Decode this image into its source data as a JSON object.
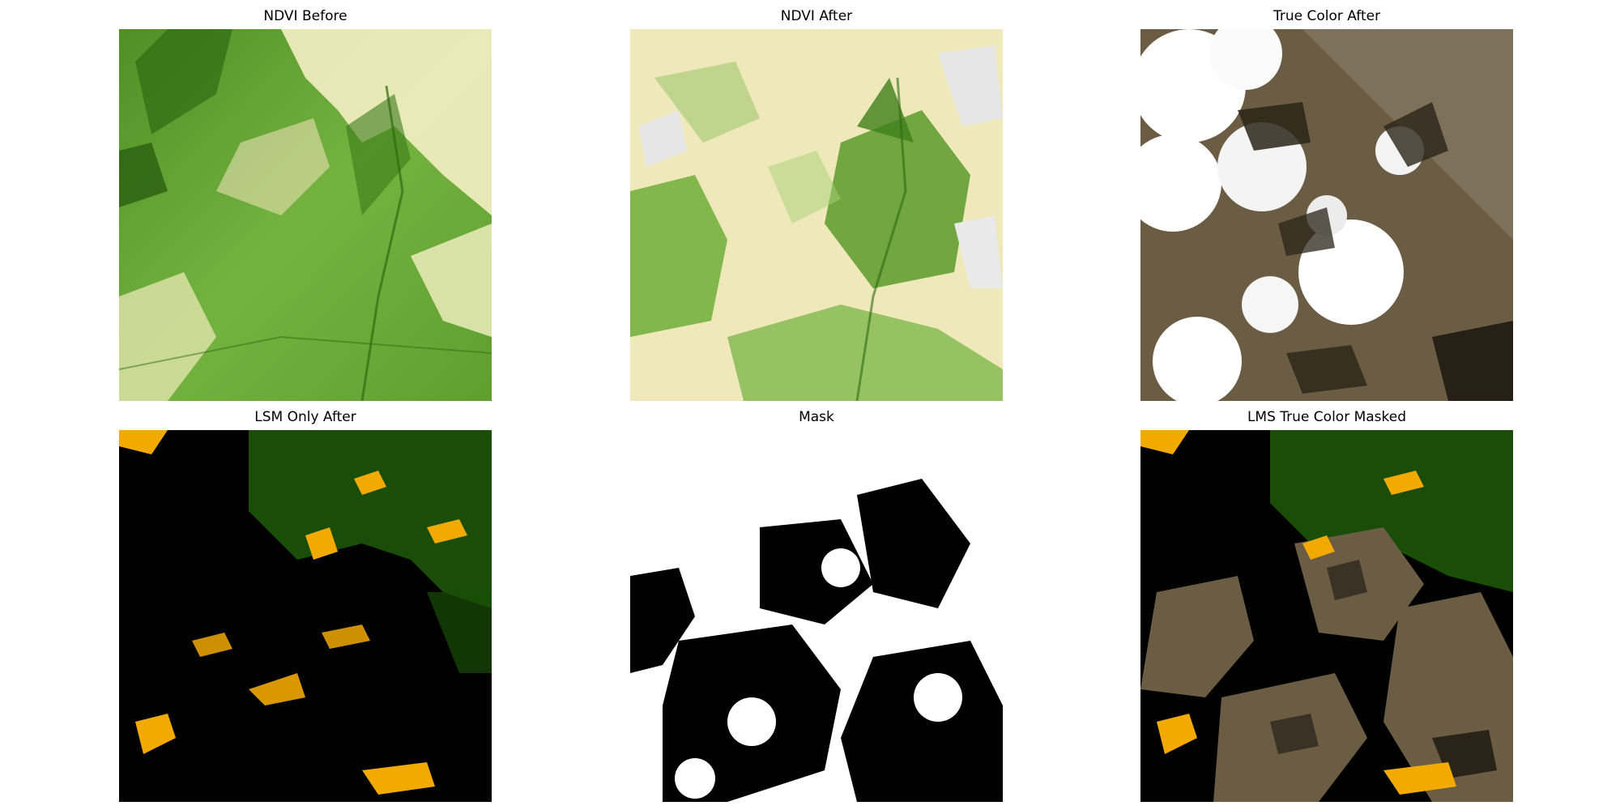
{
  "figure": {
    "panels": [
      {
        "id": "ndvi-before",
        "title": "NDVI Before"
      },
      {
        "id": "ndvi-after",
        "title": "NDVI After"
      },
      {
        "id": "true-color-after",
        "title": "True Color After"
      },
      {
        "id": "lsm-only-after",
        "title": "LSM Only After"
      },
      {
        "id": "mask",
        "title": "Mask"
      },
      {
        "id": "lms-true-color-masked",
        "title": "LMS True Color Masked"
      }
    ]
  },
  "colors": {
    "ndvi_dark_green": "#2f6b12",
    "ndvi_green": "#6fae3a",
    "ndvi_light": "#f5f0c4",
    "cloud_white": "#ffffff",
    "cloud_shadow": "#2a2418",
    "ground_brown": "#6b5c44",
    "lsm_black": "#000000",
    "lsm_orange": "#f2a900",
    "lsm_green": "#1f5a08",
    "mask_black": "#000000",
    "mask_white": "#ffffff"
  }
}
